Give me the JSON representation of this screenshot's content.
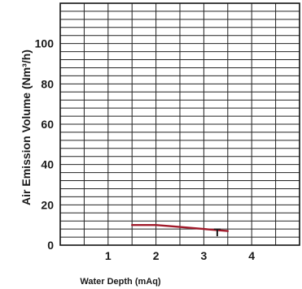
{
  "chart_data": {
    "type": "line",
    "xlabel": "Water Depth (mAq)",
    "ylabel": "Air Emission Volume (Nm³/h)",
    "xlim": [
      0,
      5
    ],
    "ylim": [
      0,
      120
    ],
    "x_ticks": [
      1,
      2,
      3,
      4
    ],
    "y_ticks": [
      0,
      20,
      40,
      60,
      80,
      100
    ],
    "grid": true,
    "series": [
      {
        "color": "#a01a2a",
        "points": [
          [
            1.5,
            10
          ],
          [
            2.0,
            10
          ],
          [
            2.5,
            9
          ],
          [
            3.0,
            8
          ],
          [
            3.5,
            7
          ]
        ]
      }
    ],
    "annotations": [
      {
        "text": "T",
        "x": 3.28,
        "y": 4.5
      }
    ]
  }
}
